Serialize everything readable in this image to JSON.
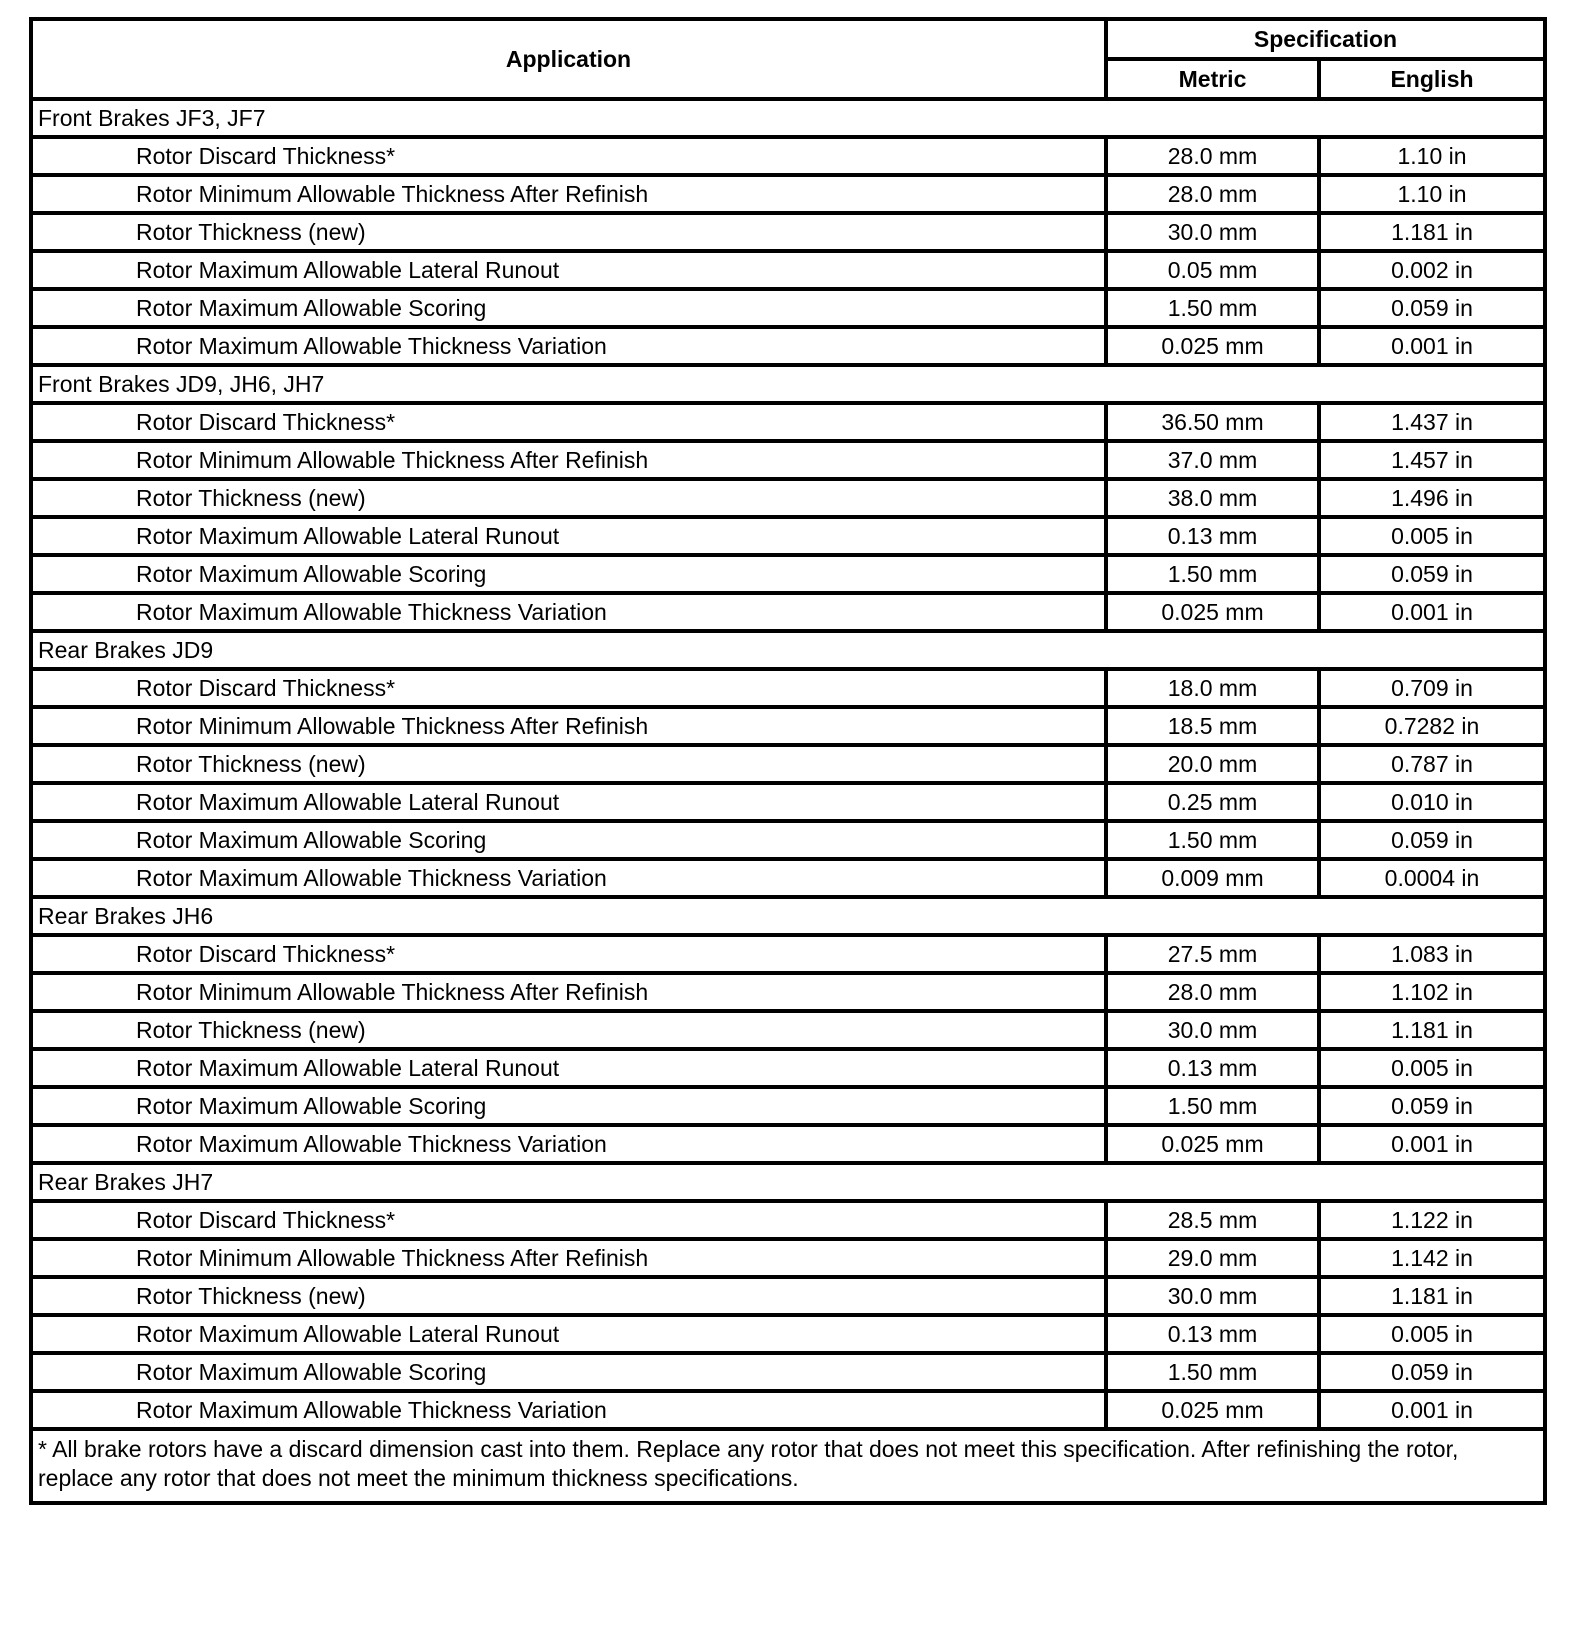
{
  "header": {
    "application": "Application",
    "specification": "Specification",
    "metric": "Metric",
    "english": "English"
  },
  "groups": [
    {
      "title": "Front Brakes JF3, JF7",
      "rows": [
        {
          "app": "Rotor Discard Thickness*",
          "metric": "28.0 mm",
          "english": "1.10 in"
        },
        {
          "app": "Rotor Minimum Allowable Thickness After Refinish",
          "metric": "28.0 mm",
          "english": "1.10 in"
        },
        {
          "app": "Rotor Thickness (new)",
          "metric": "30.0 mm",
          "english": "1.181 in"
        },
        {
          "app": "Rotor Maximum Allowable Lateral Runout",
          "metric": "0.05 mm",
          "english": "0.002 in"
        },
        {
          "app": "Rotor Maximum Allowable Scoring",
          "metric": "1.50 mm",
          "english": "0.059 in"
        },
        {
          "app": "Rotor Maximum Allowable Thickness Variation",
          "metric": "0.025 mm",
          "english": "0.001 in"
        }
      ]
    },
    {
      "title": "Front Brakes JD9, JH6, JH7",
      "rows": [
        {
          "app": "Rotor Discard Thickness*",
          "metric": "36.50 mm",
          "english": "1.437 in"
        },
        {
          "app": "Rotor Minimum Allowable Thickness After Refinish",
          "metric": "37.0 mm",
          "english": "1.457 in"
        },
        {
          "app": "Rotor Thickness (new)",
          "metric": "38.0 mm",
          "english": "1.496 in"
        },
        {
          "app": "Rotor Maximum Allowable Lateral Runout",
          "metric": "0.13 mm",
          "english": "0.005 in"
        },
        {
          "app": "Rotor Maximum Allowable Scoring",
          "metric": "1.50 mm",
          "english": "0.059 in"
        },
        {
          "app": "Rotor Maximum Allowable Thickness Variation",
          "metric": "0.025 mm",
          "english": "0.001 in"
        }
      ]
    },
    {
      "title": "Rear Brakes JD9",
      "rows": [
        {
          "app": "Rotor Discard Thickness*",
          "metric": "18.0 mm",
          "english": "0.709 in"
        },
        {
          "app": "Rotor Minimum Allowable Thickness After Refinish",
          "metric": "18.5 mm",
          "english": "0.7282 in"
        },
        {
          "app": "Rotor Thickness (new)",
          "metric": "20.0 mm",
          "english": "0.787 in"
        },
        {
          "app": "Rotor Maximum Allowable Lateral Runout",
          "metric": "0.25 mm",
          "english": "0.010 in"
        },
        {
          "app": "Rotor Maximum Allowable Scoring",
          "metric": "1.50 mm",
          "english": "0.059 in"
        },
        {
          "app": "Rotor Maximum Allowable Thickness Variation",
          "metric": "0.009 mm",
          "english": "0.0004 in"
        }
      ]
    },
    {
      "title": "Rear Brakes JH6",
      "rows": [
        {
          "app": "Rotor Discard Thickness*",
          "metric": "27.5 mm",
          "english": "1.083 in"
        },
        {
          "app": "Rotor Minimum Allowable Thickness After Refinish",
          "metric": "28.0 mm",
          "english": "1.102 in"
        },
        {
          "app": "Rotor Thickness (new)",
          "metric": "30.0 mm",
          "english": "1.181 in"
        },
        {
          "app": "Rotor Maximum Allowable Lateral Runout",
          "metric": "0.13 mm",
          "english": "0.005 in"
        },
        {
          "app": "Rotor Maximum Allowable Scoring",
          "metric": "1.50 mm",
          "english": "0.059 in"
        },
        {
          "app": "Rotor Maximum Allowable Thickness Variation",
          "metric": "0.025 mm",
          "english": "0.001 in"
        }
      ]
    },
    {
      "title": "Rear Brakes JH7",
      "rows": [
        {
          "app": "Rotor Discard Thickness*",
          "metric": "28.5 mm",
          "english": "1.122 in"
        },
        {
          "app": "Rotor Minimum Allowable Thickness After Refinish",
          "metric": "29.0 mm",
          "english": "1.142 in"
        },
        {
          "app": "Rotor Thickness (new)",
          "metric": "30.0 mm",
          "english": "1.181 in"
        },
        {
          "app": "Rotor Maximum Allowable Lateral Runout",
          "metric": "0.13 mm",
          "english": "0.005 in"
        },
        {
          "app": "Rotor Maximum Allowable Scoring",
          "metric": "1.50 mm",
          "english": "0.059 in"
        },
        {
          "app": "Rotor Maximum Allowable Thickness Variation",
          "metric": "0.025 mm",
          "english": "0.001 in"
        }
      ]
    }
  ],
  "footnote": "* All brake rotors have a discard dimension cast into them. Replace any rotor that does not meet this specification. After refinishing the rotor, replace any rotor that does not meet the minimum thickness specifications."
}
